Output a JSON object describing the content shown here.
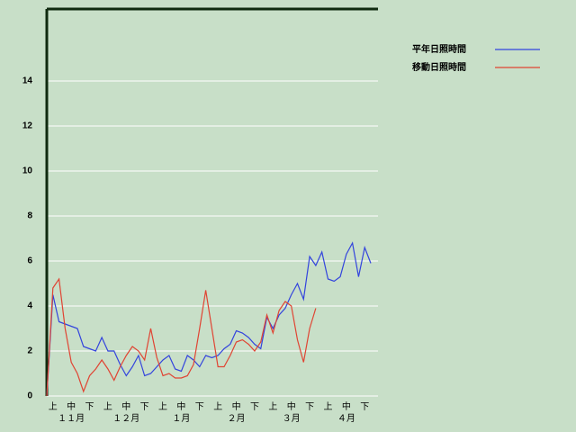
{
  "chart_data": {
    "type": "line",
    "categories": [
      null,
      "上",
      null,
      null,
      "中",
      null,
      null,
      "下",
      null,
      null,
      "上",
      null,
      null,
      "中",
      null,
      null,
      "下",
      null,
      null,
      "上",
      null,
      null,
      "中",
      null,
      null,
      "下",
      null,
      null,
      "上",
      null,
      null,
      "中",
      null,
      null,
      "下",
      null,
      null,
      "上",
      null,
      null,
      "中",
      null,
      null,
      "下",
      null,
      null,
      "上",
      null,
      null,
      "中",
      null,
      null,
      "下",
      null
    ],
    "month_labels": [
      "１１月",
      "１２月",
      "１月",
      "２月",
      "３月",
      "４月"
    ],
    "series": [
      {
        "name": "平年日照時間",
        "color": "#3344dd",
        "values": [
          0,
          4.5,
          3.3,
          3.2,
          3.1,
          3.0,
          2.2,
          2.1,
          2.0,
          2.6,
          2.0,
          2.0,
          1.4,
          0.9,
          1.3,
          1.8,
          0.9,
          1.0,
          1.3,
          1.6,
          1.8,
          1.2,
          1.1,
          1.8,
          1.6,
          1.3,
          1.8,
          1.7,
          1.8,
          2.1,
          2.3,
          2.9,
          2.8,
          2.6,
          2.3,
          2.1,
          3.5,
          3.0,
          3.6,
          3.9,
          4.5,
          5.0,
          4.3,
          6.2,
          5.8,
          6.4,
          5.2,
          5.1,
          5.3,
          6.3,
          6.8,
          5.3,
          6.6,
          5.9
        ]
      },
      {
        "name": "移動日照時間",
        "color": "#e04433",
        "values": [
          0,
          4.8,
          5.2,
          3.0,
          1.5,
          1.0,
          0.2,
          0.9,
          1.2,
          1.6,
          1.2,
          0.7,
          1.3,
          1.8,
          2.2,
          2.0,
          1.6,
          3.0,
          1.7,
          0.9,
          1.0,
          0.8,
          0.8,
          0.9,
          1.4,
          3.0,
          4.7,
          3.0,
          1.3,
          1.3,
          1.8,
          2.4,
          2.5,
          2.3,
          2.0,
          2.4,
          3.6,
          2.8,
          3.8,
          4.2,
          4.0,
          2.5,
          1.5,
          3.0,
          3.9,
          null,
          null,
          null,
          null,
          null,
          null,
          null,
          null,
          null
        ]
      }
    ],
    "ylim": [
      0,
      17.2
    ],
    "yticks": [
      0,
      2,
      4,
      6,
      8,
      10,
      12,
      14
    ],
    "grid": true
  }
}
